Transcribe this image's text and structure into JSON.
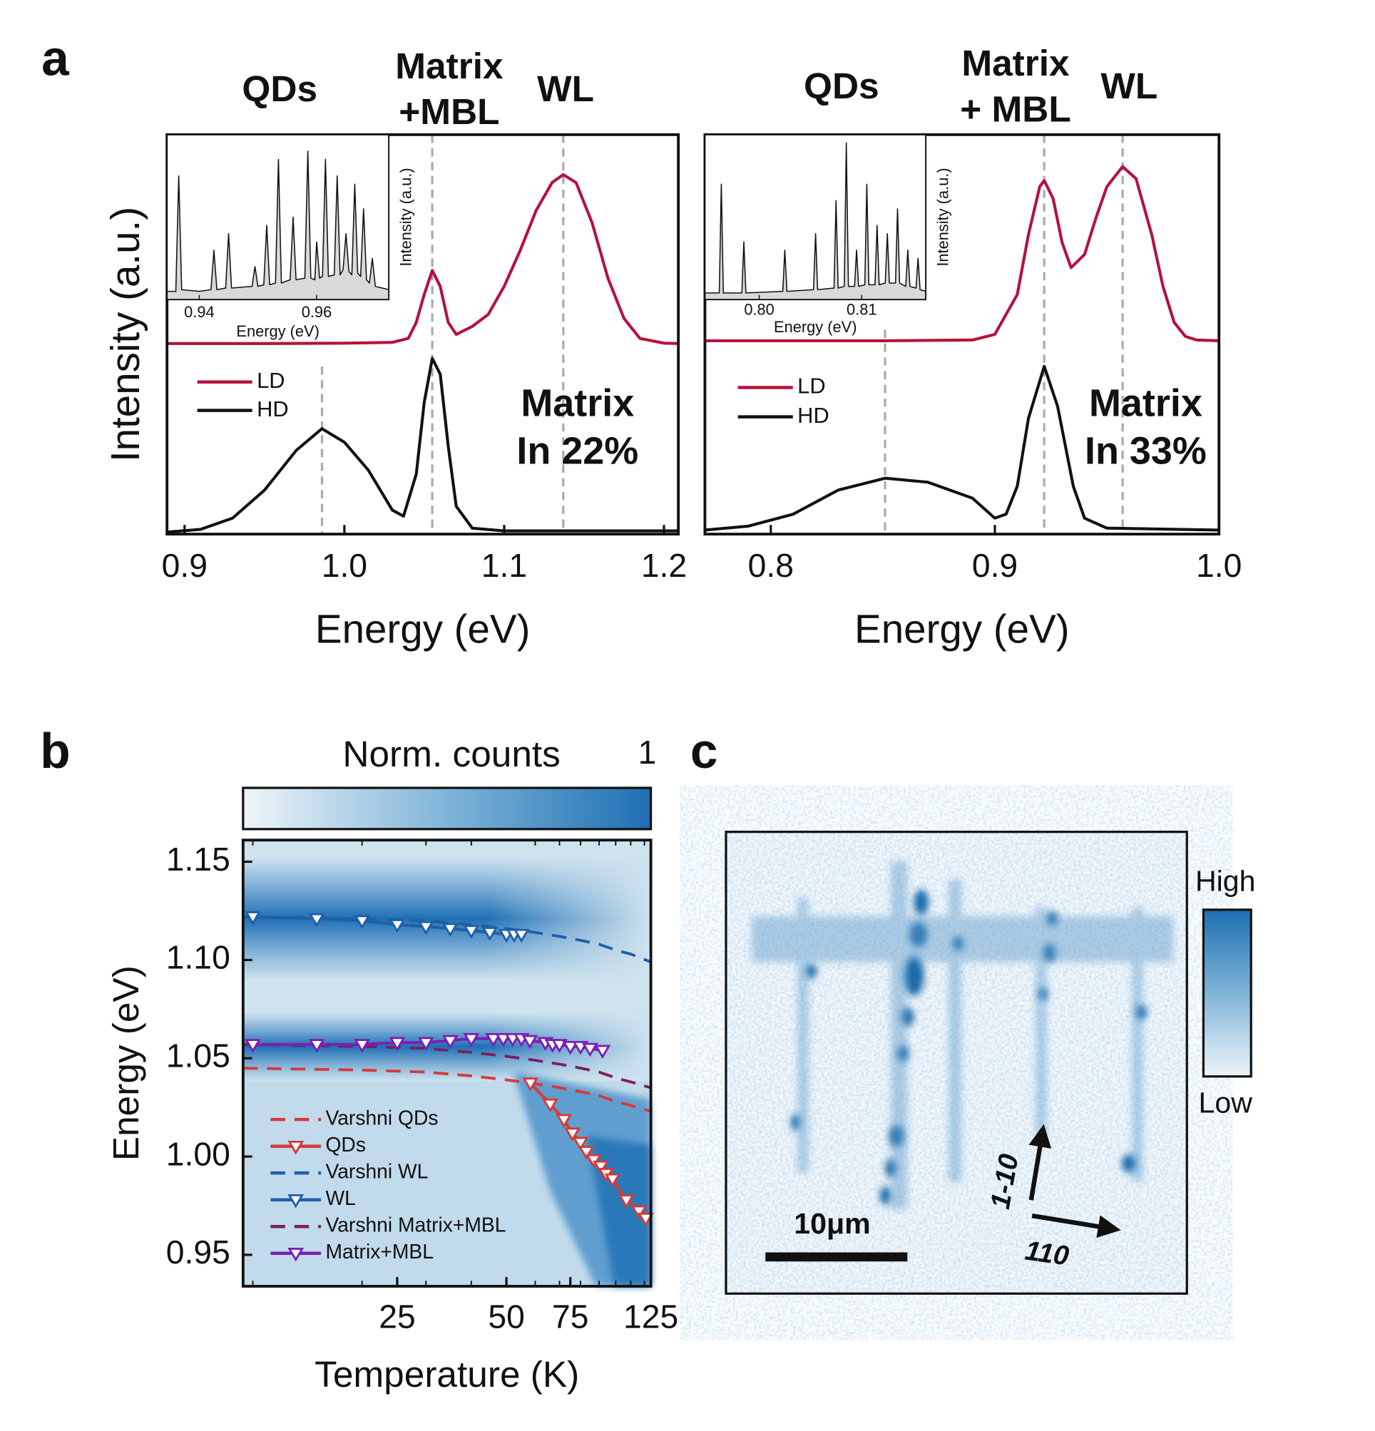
{
  "panels": [
    "a",
    "b",
    "c"
  ],
  "chart_data": [
    {
      "type": "line",
      "xlabel": "Energy (eV)",
      "ylabel": "Intensity (a.u.)",
      "xlim": [
        0.889,
        1.209
      ],
      "xticks": [
        0.9,
        {
          "value": 1.0,
          "label": "1.0"
        },
        1.1,
        1.2
      ],
      "ylim": [
        0,
        1
      ],
      "peak_lines": [
        0.986,
        1.055,
        1.137
      ],
      "peak_labels": [
        [
          "QDs"
        ],
        [
          "Matrix",
          "+MBL"
        ],
        [
          "WL"
        ]
      ],
      "annotation": [
        "Matrix",
        "In 22%"
      ],
      "series": [
        {
          "name": "LD",
          "color": "#b5123a",
          "x": [
            0.889,
            0.95,
            1.0,
            1.03,
            1.04,
            1.045,
            1.05,
            1.055,
            1.06,
            1.065,
            1.07,
            1.08,
            1.09,
            1.1,
            1.11,
            1.12,
            1.13,
            1.137,
            1.145,
            1.155,
            1.165,
            1.175,
            1.185,
            1.2,
            1.209
          ],
          "values": [
            0.477,
            0.477,
            0.478,
            0.48,
            0.49,
            0.53,
            0.6,
            0.66,
            0.62,
            0.53,
            0.5,
            0.52,
            0.55,
            0.62,
            0.71,
            0.81,
            0.88,
            0.9,
            0.88,
            0.78,
            0.64,
            0.54,
            0.49,
            0.478,
            0.477
          ]
        },
        {
          "name": "HD",
          "color": "#111111",
          "x": [
            0.889,
            0.91,
            0.93,
            0.95,
            0.97,
            0.986,
            1.0,
            1.015,
            1.03,
            1.037,
            1.045,
            1.05,
            1.055,
            1.06,
            1.065,
            1.07,
            1.08,
            1.1,
            1.209
          ],
          "values": [
            0.005,
            0.012,
            0.04,
            0.11,
            0.21,
            0.264,
            0.23,
            0.16,
            0.06,
            0.045,
            0.15,
            0.33,
            0.44,
            0.4,
            0.22,
            0.07,
            0.015,
            0.008,
            0.008
          ]
        }
      ]
    },
    {
      "type": "line",
      "xlabel": "Energy (eV)",
      "ylabel": "Intensity (a.u.)",
      "xlim": [
        0.9345,
        0.9723
      ],
      "xticks": [
        0.94,
        0.96
      ],
      "ylim": [
        0,
        1
      ],
      "fill_color": "#d9d9d9",
      "series": [
        {
          "color": "#111111",
          "x": [
            0.9345,
            0.936,
            0.9365,
            0.937,
            0.94,
            0.942,
            0.9425,
            0.943,
            0.9445,
            0.945,
            0.9455,
            0.949,
            0.9495,
            0.95,
            0.951,
            0.9515,
            0.952,
            0.953,
            0.9535,
            0.954,
            0.9555,
            0.956,
            0.9565,
            0.958,
            0.9585,
            0.959,
            0.9597,
            0.96,
            0.9605,
            0.961,
            0.9615,
            0.962,
            0.963,
            0.9635,
            0.964,
            0.9645,
            0.965,
            0.9655,
            0.966,
            0.9665,
            0.967,
            0.9675,
            0.968,
            0.9685,
            0.969,
            0.9695,
            0.97,
            0.9723
          ],
          "values": [
            0.05,
            0.05,
            0.75,
            0.06,
            0.05,
            0.06,
            0.3,
            0.06,
            0.07,
            0.4,
            0.07,
            0.08,
            0.2,
            0.08,
            0.09,
            0.45,
            0.09,
            0.1,
            0.85,
            0.1,
            0.12,
            0.5,
            0.12,
            0.13,
            0.9,
            0.13,
            0.12,
            0.35,
            0.13,
            0.14,
            0.85,
            0.14,
            0.15,
            0.75,
            0.15,
            0.18,
            0.4,
            0.17,
            0.15,
            0.7,
            0.16,
            0.14,
            0.55,
            0.12,
            0.1,
            0.25,
            0.08,
            0.06
          ]
        }
      ]
    },
    {
      "type": "line",
      "xlabel": "Energy (eV)",
      "xlim": [
        0.7706,
        1.0
      ],
      "xticks": [
        0.8,
        0.9,
        {
          "value": 1.0,
          "label": "1.0"
        }
      ],
      "ylim": [
        0,
        1
      ],
      "peak_lines": [
        0.851,
        0.922,
        0.957
      ],
      "peak_labels": [
        [
          "QDs"
        ],
        [
          "Matrix",
          "+ MBL"
        ],
        [
          "WL"
        ]
      ],
      "annotation": [
        "Matrix",
        "In 33%"
      ],
      "series": [
        {
          "name": "LD",
          "color": "#b5123a",
          "x": [
            0.7706,
            0.85,
            0.89,
            0.9,
            0.91,
            0.915,
            0.92,
            0.922,
            0.926,
            0.93,
            0.934,
            0.94,
            0.945,
            0.95,
            0.957,
            0.963,
            0.97,
            0.975,
            0.98,
            0.985,
            0.99,
            1.0
          ],
          "values": [
            0.484,
            0.484,
            0.486,
            0.5,
            0.6,
            0.75,
            0.87,
            0.885,
            0.84,
            0.73,
            0.667,
            0.7,
            0.79,
            0.87,
            0.92,
            0.89,
            0.75,
            0.62,
            0.53,
            0.495,
            0.486,
            0.484
          ]
        },
        {
          "name": "HD",
          "color": "#111111",
          "x": [
            0.7706,
            0.79,
            0.81,
            0.83,
            0.851,
            0.87,
            0.89,
            0.9,
            0.905,
            0.91,
            0.915,
            0.922,
            0.928,
            0.935,
            0.94,
            0.95,
            1.0
          ],
          "values": [
            0.01,
            0.02,
            0.05,
            0.11,
            0.14,
            0.13,
            0.09,
            0.04,
            0.05,
            0.12,
            0.29,
            0.42,
            0.32,
            0.12,
            0.04,
            0.015,
            0.01
          ]
        }
      ]
    },
    {
      "type": "line",
      "xlabel": "Energy (eV)",
      "ylabel": "Intensity (a.u.)",
      "xlim": [
        0.7947,
        0.81625
      ],
      "xticks": [
        {
          "value": 0.8,
          "label": "0.80"
        },
        0.81
      ],
      "ylim": [
        0,
        1
      ],
      "fill_color": "#d9d9d9",
      "series": [
        {
          "color": "#111111",
          "x": [
            0.7947,
            0.7961,
            0.7963,
            0.7965,
            0.7983,
            0.7985,
            0.7987,
            0.8023,
            0.8025,
            0.8027,
            0.8053,
            0.8055,
            0.8057,
            0.8073,
            0.8075,
            0.8077,
            0.8083,
            0.8085,
            0.8087,
            0.8093,
            0.8095,
            0.8097,
            0.8103,
            0.8105,
            0.8107,
            0.8113,
            0.8115,
            0.8117,
            0.8123,
            0.8125,
            0.8127,
            0.8133,
            0.8135,
            0.8137,
            0.8143,
            0.8145,
            0.8147,
            0.8153,
            0.8155,
            0.8157,
            0.81625
          ],
          "values": [
            0.04,
            0.04,
            0.7,
            0.04,
            0.04,
            0.35,
            0.04,
            0.05,
            0.3,
            0.05,
            0.06,
            0.4,
            0.06,
            0.07,
            0.6,
            0.07,
            0.08,
            0.95,
            0.08,
            0.08,
            0.3,
            0.08,
            0.09,
            0.7,
            0.09,
            0.09,
            0.45,
            0.09,
            0.1,
            0.4,
            0.1,
            0.1,
            0.55,
            0.1,
            0.08,
            0.3,
            0.08,
            0.07,
            0.25,
            0.06,
            0.05
          ]
        }
      ]
    },
    {
      "type": "line",
      "xlabel": "Temperature (K)",
      "ylabel": "Energy (eV)",
      "xscale": "log",
      "colorbar_label": "Norm. counts",
      "colorbar_ticks": [
        1
      ],
      "xlim": [
        9.4,
        125
      ],
      "xticks": [
        25,
        50,
        75,
        125
      ],
      "ylim": [
        0.934,
        1.161
      ],
      "yticks": [
        1.15,
        {
          "value": 1.1,
          "label": "1.10"
        },
        1.05,
        {
          "value": 1.0,
          "label": "1.00"
        },
        0.95
      ],
      "series": [
        {
          "name": "Varshni QDs",
          "color": "#d63a3a",
          "style": "dashed",
          "x": [
            9.4,
            20,
            30,
            40,
            50,
            60,
            70,
            80,
            90,
            100,
            110,
            125
          ],
          "values": [
            1.045,
            1.044,
            1.043,
            1.041,
            1.039,
            1.037,
            1.035,
            1.033,
            1.031,
            1.028,
            1.026,
            1.023
          ]
        },
        {
          "name": "QDs",
          "color": "#d63a3a",
          "style": "marker",
          "x": [
            58.2,
            66,
            72,
            76,
            80,
            83,
            87,
            91,
            94,
            98,
            107,
            116,
            121
          ],
          "values": [
            1.0374,
            1.0267,
            1.0188,
            1.0119,
            1.0072,
            1.0026,
            0.9984,
            0.9951,
            0.9914,
            0.9886,
            0.9779,
            0.9723,
            0.9686
          ]
        },
        {
          "name": "Varshni WL",
          "color": "#1f5fa8",
          "style": "dashed",
          "x": [
            9.4,
            20,
            30,
            40,
            50,
            60,
            70,
            80,
            90,
            100,
            110,
            125
          ],
          "values": [
            1.122,
            1.121,
            1.12,
            1.118,
            1.116,
            1.114,
            1.112,
            1.11,
            1.108,
            1.105,
            1.103,
            1.099
          ]
        },
        {
          "name": "WL",
          "color": "#1f5fa8",
          "style": "marker",
          "x": [
            10,
            15,
            20,
            25,
            30,
            35,
            40,
            45,
            50,
            52.5,
            55
          ],
          "values": [
            1.122,
            1.121,
            1.12,
            1.118,
            1.117,
            1.116,
            1.115,
            1.114,
            1.113,
            1.113,
            1.113
          ]
        },
        {
          "name": "Varshni Matrix+MBL",
          "color": "#7b1f5a",
          "style": "dashed",
          "x": [
            9.4,
            20,
            30,
            40,
            50,
            60,
            70,
            80,
            90,
            100,
            110,
            125
          ],
          "values": [
            1.057,
            1.056,
            1.055,
            1.053,
            1.051,
            1.049,
            1.047,
            1.045,
            1.043,
            1.04,
            1.038,
            1.035
          ]
        },
        {
          "name": "Matrix+MBL",
          "color": "#7a1fb5",
          "style": "marker",
          "x": [
            10,
            15,
            20,
            25,
            30,
            35,
            40,
            46,
            49,
            52,
            55,
            58,
            64,
            67,
            70,
            75,
            80,
            85,
            92
          ],
          "values": [
            1.057,
            1.057,
            1.057,
            1.058,
            1.058,
            1.059,
            1.06,
            1.06,
            1.06,
            1.06,
            1.06,
            1.059,
            1.058,
            1.057,
            1.057,
            1.056,
            1.056,
            1.055,
            1.054
          ]
        }
      ]
    },
    {
      "type": "image",
      "colorbar_labels": [
        "High",
        "Low"
      ],
      "scalebar": "10μm",
      "arrows": [
        "1-10",
        "110"
      ]
    }
  ]
}
